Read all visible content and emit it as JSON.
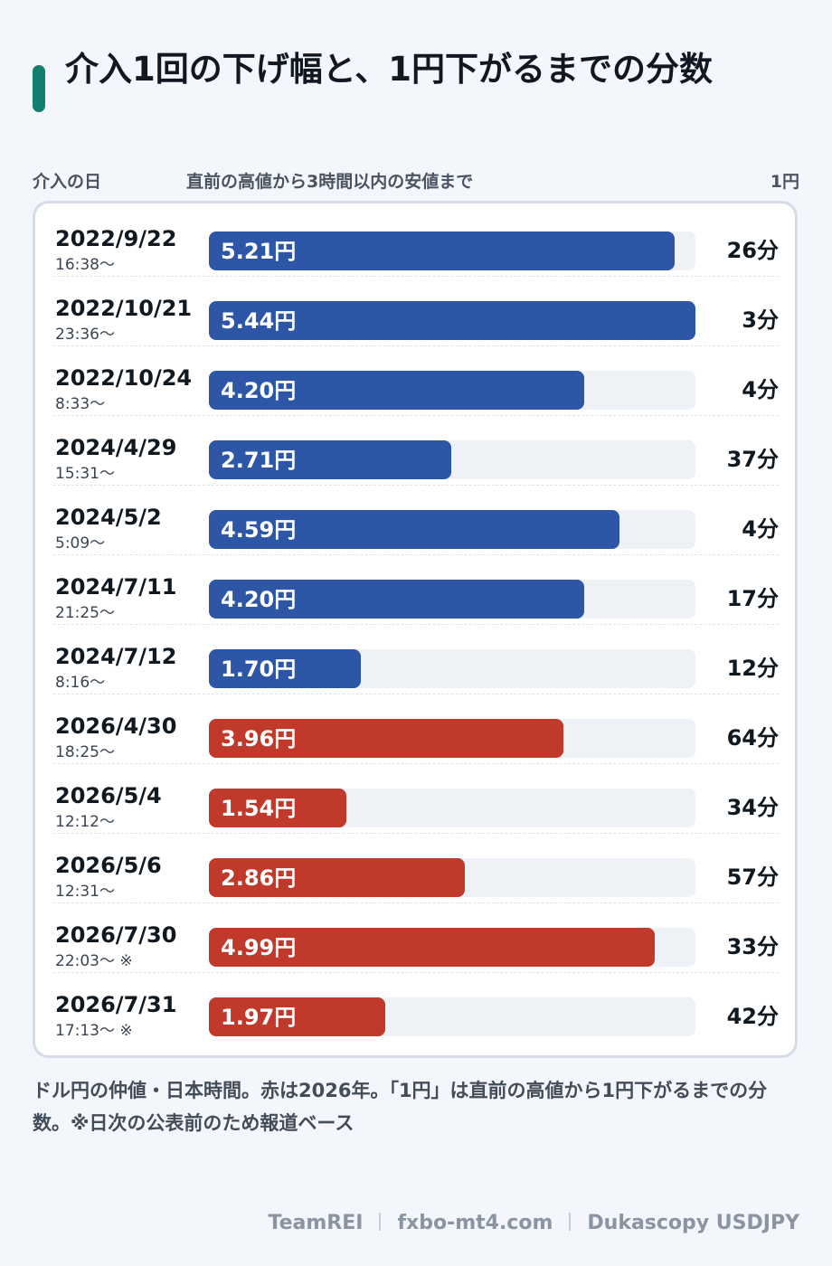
{
  "title": "介入1回の下げ幅と、1円下がるまでの分数",
  "columns": {
    "date": "介入の日",
    "drop": "直前の高値から3時間以内の安値まで",
    "minutes": "1円"
  },
  "colors": {
    "accent": "#12806f",
    "blue": "#2d57a6",
    "red": "#c0392b",
    "track": "#eef2f7"
  },
  "chart_data": {
    "type": "bar",
    "orientation": "horizontal",
    "xlim": [
      0,
      5.44
    ],
    "grid": false,
    "rows": [
      {
        "date": "2022/9/22",
        "time": "16:38〜",
        "value": 5.21,
        "label": "5.21円",
        "minutes": "26分",
        "color": "#2d57a6"
      },
      {
        "date": "2022/10/21",
        "time": "23:36〜",
        "value": 5.44,
        "label": "5.44円",
        "minutes": "3分",
        "color": "#2d57a6"
      },
      {
        "date": "2022/10/24",
        "time": "8:33〜",
        "value": 4.2,
        "label": "4.20円",
        "minutes": "4分",
        "color": "#2d57a6"
      },
      {
        "date": "2024/4/29",
        "time": "15:31〜",
        "value": 2.71,
        "label": "2.71円",
        "minutes": "37分",
        "color": "#2d57a6"
      },
      {
        "date": "2024/5/2",
        "time": "5:09〜",
        "value": 4.59,
        "label": "4.59円",
        "minutes": "4分",
        "color": "#2d57a6"
      },
      {
        "date": "2024/7/11",
        "time": "21:25〜",
        "value": 4.2,
        "label": "4.20円",
        "minutes": "17分",
        "color": "#2d57a6"
      },
      {
        "date": "2024/7/12",
        "time": "8:16〜",
        "value": 1.7,
        "label": "1.70円",
        "minutes": "12分",
        "color": "#2d57a6"
      },
      {
        "date": "2026/4/30",
        "time": "18:25〜",
        "value": 3.96,
        "label": "3.96円",
        "minutes": "64分",
        "color": "#c0392b"
      },
      {
        "date": "2026/5/4",
        "time": "12:12〜",
        "value": 1.54,
        "label": "1.54円",
        "minutes": "34分",
        "color": "#c0392b"
      },
      {
        "date": "2026/5/6",
        "time": "12:31〜",
        "value": 2.86,
        "label": "2.86円",
        "minutes": "57分",
        "color": "#c0392b"
      },
      {
        "date": "2026/7/30",
        "time": "22:03〜 ※",
        "value": 4.99,
        "label": "4.99円",
        "minutes": "33分",
        "color": "#c0392b"
      },
      {
        "date": "2026/7/31",
        "time": "17:13〜 ※",
        "value": 1.97,
        "label": "1.97円",
        "minutes": "42分",
        "color": "#c0392b"
      }
    ]
  },
  "footnote": "ドル円の仲値・日本時間。赤は2026年。「1円」は直前の高値から1円下がるまでの分数。※日次の公表前のため報道ベース",
  "source": {
    "author": "TeamREI",
    "site": "fxbo-mt4.com",
    "data": "Dukascopy USDJPY"
  }
}
